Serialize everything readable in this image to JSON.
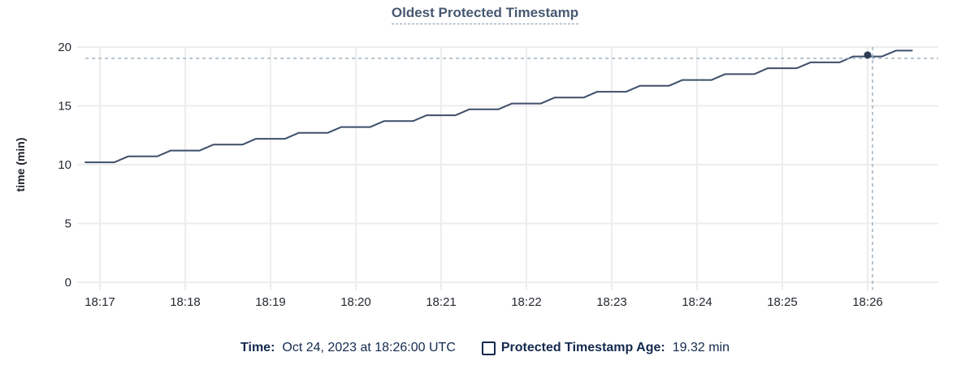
{
  "colors": {
    "title": "#475872",
    "legend_text": "#14294e",
    "axis_text": "#242a31",
    "line": "#3e4e6a",
    "marker_dot": "#2e3c55",
    "crosshair": "#9fb2c1",
    "grid": "#ededed"
  },
  "chart_data": {
    "type": "line",
    "title": "Oldest Protected Timestamp",
    "xlabel": "",
    "ylabel": "time (min)",
    "ylim": [
      0,
      20
    ],
    "yticks": [
      0,
      5,
      10,
      15,
      20
    ],
    "x_unit_note": "t = minutes after 18:16:00 UTC",
    "xticks": [
      {
        "t": 1,
        "label": "18:17"
      },
      {
        "t": 2,
        "label": "18:18"
      },
      {
        "t": 3,
        "label": "18:19"
      },
      {
        "t": 4,
        "label": "18:20"
      },
      {
        "t": 5,
        "label": "18:21"
      },
      {
        "t": 6,
        "label": "18:22"
      },
      {
        "t": 7,
        "label": "18:23"
      },
      {
        "t": 8,
        "label": "18:24"
      },
      {
        "t": 9,
        "label": "18:25"
      },
      {
        "t": 10,
        "label": "18:26"
      }
    ],
    "grid": true,
    "legend_position": "bottom",
    "series": [
      {
        "name": "Protected Timestamp Age",
        "points": [
          [
            0.83,
            10.2
          ],
          [
            1.17,
            10.2
          ],
          [
            1.33,
            10.7
          ],
          [
            1.67,
            10.7
          ],
          [
            1.83,
            11.2
          ],
          [
            2.17,
            11.2
          ],
          [
            2.33,
            11.7
          ],
          [
            2.67,
            11.7
          ],
          [
            2.83,
            12.2
          ],
          [
            3.17,
            12.2
          ],
          [
            3.33,
            12.7
          ],
          [
            3.67,
            12.7
          ],
          [
            3.83,
            13.2
          ],
          [
            4.17,
            13.2
          ],
          [
            4.33,
            13.7
          ],
          [
            4.67,
            13.7
          ],
          [
            4.83,
            14.2
          ],
          [
            5.17,
            14.2
          ],
          [
            5.33,
            14.7
          ],
          [
            5.67,
            14.7
          ],
          [
            5.83,
            15.2
          ],
          [
            6.17,
            15.2
          ],
          [
            6.33,
            15.7
          ],
          [
            6.67,
            15.7
          ],
          [
            6.83,
            16.2
          ],
          [
            7.17,
            16.2
          ],
          [
            7.33,
            16.7
          ],
          [
            7.67,
            16.7
          ],
          [
            7.83,
            17.2
          ],
          [
            8.17,
            17.2
          ],
          [
            8.33,
            17.7
          ],
          [
            8.67,
            17.7
          ],
          [
            8.83,
            18.2
          ],
          [
            9.17,
            18.2
          ],
          [
            9.33,
            18.7
          ],
          [
            9.67,
            18.7
          ],
          [
            9.83,
            19.2
          ],
          [
            10.17,
            19.2
          ],
          [
            10.33,
            19.7
          ],
          [
            10.52,
            19.7
          ]
        ]
      }
    ],
    "marker": {
      "t": 10,
      "value": 19.32,
      "time_label": "18:26"
    }
  },
  "legend": {
    "time_label": "Time:",
    "time_value": "Oct 24, 2023 at 18:26:00 UTC",
    "series_label": "Protected Timestamp Age:",
    "series_value": "19.32 min"
  }
}
